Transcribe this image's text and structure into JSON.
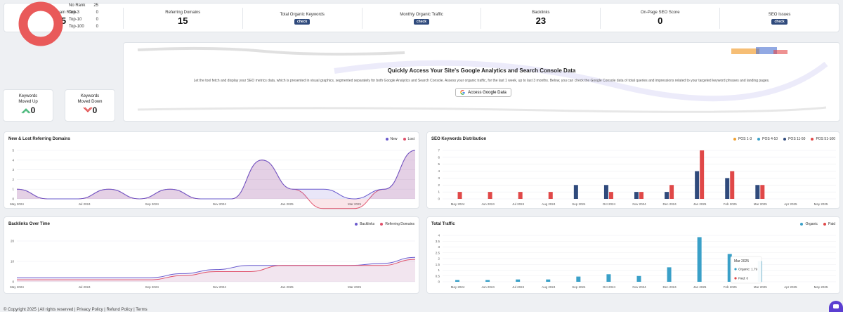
{
  "stats": [
    {
      "label": "Domain Rank",
      "value": "5"
    },
    {
      "label": "Referring Domains",
      "value": "15"
    },
    {
      "label": "Total Organic Keywords",
      "button": "check"
    },
    {
      "label": "Monthly Organic Traffic",
      "button": "check"
    },
    {
      "label": "Backlinks",
      "value": "23"
    },
    {
      "label": "On-Page SEO Score",
      "value": "0"
    },
    {
      "label": "SEO Issues",
      "button": "check"
    }
  ],
  "rank": {
    "legend": [
      {
        "label": "No Rank",
        "value": "25"
      },
      {
        "label": "Top-3",
        "value": "0"
      },
      {
        "label": "Top-10",
        "value": "0"
      },
      {
        "label": "Top-100",
        "value": "0"
      }
    ],
    "donut_color": "#e95a5a"
  },
  "keywords_up": {
    "label": "Keywords\nMoved Up",
    "line1": "Keywords",
    "line2": "Moved Up",
    "value": "0"
  },
  "keywords_down": {
    "line1": "Keywords",
    "line2": "Moved Down",
    "value": "0"
  },
  "google": {
    "title": "Quickly Access Your Site's Google Analytics and Search Console Data",
    "description": "Let the tool fetch and display your SEO metrics data, which is presented in visual graphics, segmented separately for both Google Analytics and Search Console. Assess your organic traffic, for the last 1 week, up to last 3 months. Below, you can check the Google Console data of total queries and impressions related to your targeted keyword phrases and landing pages.",
    "button": "Access Google Data"
  },
  "chart_data": [
    {
      "type": "area",
      "title": "New & Lost Referring Domains",
      "ylim": [
        0,
        5
      ],
      "yticks": [
        "0",
        "1",
        "2",
        "3",
        "4",
        "5"
      ],
      "x_labels": [
        "May 2024",
        "Jul 2024",
        "Sep 2024",
        "Nov 2024",
        "Jan 2025",
        "Mar 2025"
      ],
      "series": [
        {
          "name": "New",
          "color": "#6a5acd",
          "values": [
            1,
            0,
            0,
            1,
            0,
            1,
            0,
            0,
            4,
            1,
            1,
            0,
            1,
            5
          ]
        },
        {
          "name": "Lost",
          "color": "#e0506a",
          "values": [
            1,
            0,
            0,
            1,
            0,
            1,
            0,
            0,
            4,
            1,
            -1,
            -1,
            1,
            5
          ]
        }
      ]
    },
    {
      "type": "bar",
      "title": "SEO Keywords Distribution",
      "ylim": [
        0,
        7
      ],
      "yticks": [
        "0",
        "1",
        "2",
        "3",
        "4",
        "5",
        "6",
        "7"
      ],
      "categories": [
        "May 2024",
        "Jun 2024",
        "Jul 2024",
        "Aug 2024",
        "Sep 2024",
        "Oct 2024",
        "Nov 2024",
        "Dec 2024",
        "Jan 2025",
        "Feb 2025",
        "Mar 2025",
        "Apr 2025",
        "May 2025"
      ],
      "series": [
        {
          "name": "POS 1-3",
          "color": "#f0a030",
          "values": [
            0,
            0,
            0,
            0,
            0,
            0,
            0,
            0,
            0,
            0,
            0,
            0,
            0
          ]
        },
        {
          "name": "POS 4-10",
          "color": "#3aa0c8",
          "values": [
            0,
            0,
            0,
            0,
            0,
            0,
            0,
            0,
            0,
            0,
            0,
            0,
            0
          ]
        },
        {
          "name": "POS 11-50",
          "color": "#2f4a7c",
          "values": [
            0,
            0,
            0,
            0,
            2,
            2,
            1,
            1,
            4,
            3,
            2,
            0,
            0
          ]
        },
        {
          "name": "POS 51-100",
          "color": "#e04848",
          "values": [
            1,
            1,
            1,
            1,
            0,
            1,
            1,
            2,
            7,
            4,
            2,
            0,
            0
          ]
        }
      ]
    },
    {
      "type": "line",
      "title": "Backlinks Over Time",
      "ylim": [
        0,
        20
      ],
      "yticks": [
        "0",
        "10",
        "20"
      ],
      "x_labels": [
        "May 2024",
        "Jul 2024",
        "Sep 2024",
        "Nov 2024",
        "Jan 2025",
        "Mar 2025"
      ],
      "series": [
        {
          "name": "Backlinks",
          "color": "#6a5acd",
          "values": [
            2,
            2,
            2,
            2,
            2,
            4,
            6,
            8,
            8,
            8,
            8,
            9,
            12
          ]
        },
        {
          "name": "Referring Domains",
          "color": "#e0506a",
          "values": [
            1,
            1,
            1,
            1,
            1,
            3,
            5,
            5,
            8,
            8,
            8,
            8,
            11
          ]
        }
      ]
    },
    {
      "type": "bar",
      "title": "Total Traffic",
      "ylim": [
        0,
        4
      ],
      "yticks": [
        "0",
        "0.5",
        "1",
        "1.5",
        "2",
        "2.5",
        "3",
        "3.5",
        "4"
      ],
      "categories": [
        "May 2024",
        "Jun 2024",
        "Jul 2024",
        "Aug 2024",
        "Sep 2024",
        "Oct 2024",
        "Nov 2024",
        "Dec 2024",
        "Jan 2025",
        "Feb 2025",
        "Mar 2025",
        "Apr 2025",
        "May 2025"
      ],
      "series": [
        {
          "name": "Organic",
          "color": "#3aa0c8",
          "values": [
            0.15,
            0.15,
            0.2,
            0.2,
            0.45,
            0.65,
            0.5,
            1.25,
            3.85,
            2.4,
            1.79,
            0,
            0
          ]
        },
        {
          "name": "Paid",
          "color": "#e04848",
          "values": [
            0,
            0,
            0,
            0,
            0,
            0,
            0,
            0,
            0,
            0,
            0,
            0,
            0
          ]
        }
      ],
      "tooltip": {
        "title": "Mar 2025",
        "organic": "Organic: 1.79",
        "paid": "Paid: 0"
      }
    }
  ],
  "footer": "© Copyright 2025 | All rights reserved | Privacy Policy | Refund Policy | Terms"
}
